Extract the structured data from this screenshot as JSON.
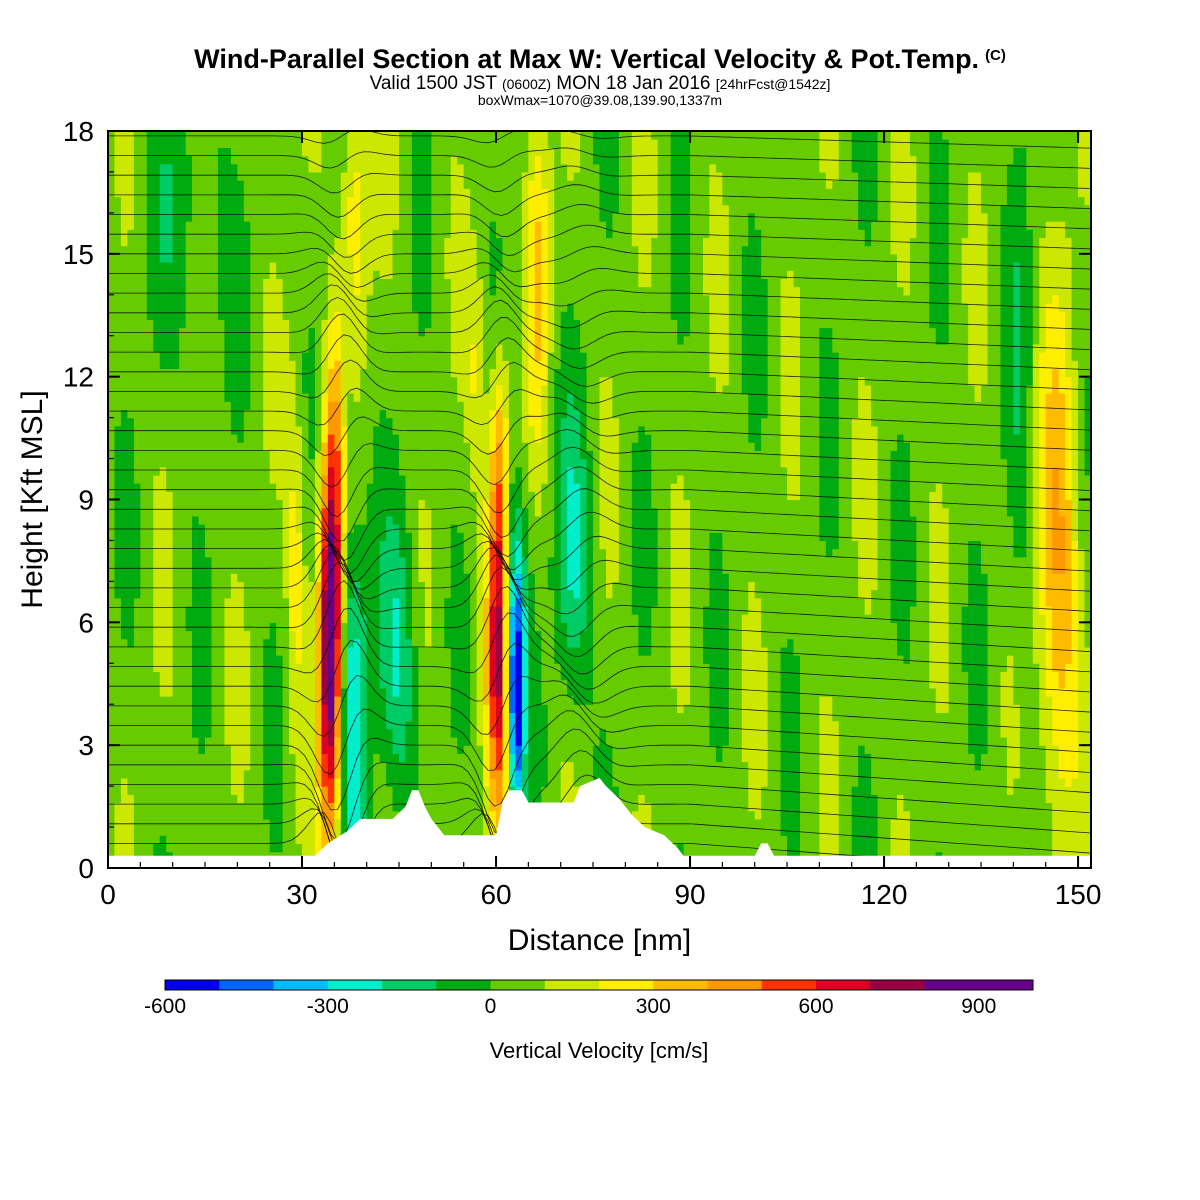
{
  "header": {
    "title": "Wind-Parallel Section at Max W: Vertical Velocity & Pot.Temp.",
    "copyright": "(C)",
    "valid_prefix": "Valid 1500 JST",
    "valid_utc": "(0600Z)",
    "valid_date": "MON 18 Jan 2016",
    "forecast": "[24hrFcst@1542z]",
    "boxwmax": "boxWmax=1070@39.08,139.90,1337m"
  },
  "chart_data": {
    "type": "heatmap",
    "title": "Wind-Parallel Section at Max W: Vertical Velocity & Pot.Temp.",
    "xlabel": "Distance [nm]",
    "ylabel": "Height [Kft MSL]",
    "xlim": [
      0,
      152
    ],
    "ylim": [
      0,
      18
    ],
    "x_ticks": [
      "0",
      "30",
      "60",
      "90",
      "120",
      "150"
    ],
    "y_ticks": [
      "0",
      "3",
      "6",
      "9",
      "12",
      "15",
      "18"
    ],
    "x_tick_values": [
      0,
      30,
      60,
      90,
      120,
      150
    ],
    "y_tick_values": [
      0,
      3,
      6,
      9,
      12,
      15,
      18
    ],
    "colorbar": {
      "label": "Vertical Velocity [cm/s]",
      "tick_labels": [
        "-600",
        "-300",
        "0",
        "300",
        "600",
        "900"
      ],
      "tick_values": [
        -600,
        -300,
        0,
        300,
        600,
        900
      ],
      "bounds": [
        -600,
        -500,
        -400,
        -300,
        -200,
        -100,
        0,
        100,
        200,
        300,
        400,
        500,
        600,
        700,
        800,
        900,
        1000
      ],
      "colors": [
        "#0000ee",
        "#0066ff",
        "#00bbff",
        "#00eecc",
        "#00cc66",
        "#00aa11",
        "#66cc00",
        "#cce800",
        "#ffee00",
        "#ffbb00",
        "#ff9900",
        "#ff3300",
        "#dd0022",
        "#990044",
        "#660088",
        "#660088"
      ]
    },
    "background_value": 50,
    "updraft_cores": [
      {
        "x": 34.5,
        "z": 5.5,
        "w": 1000,
        "sx": 1.3,
        "sz": 3.5
      },
      {
        "x": 35.5,
        "z": 11.0,
        "w": 350,
        "sx": 1.0,
        "sz": 2.5
      },
      {
        "x": 38.0,
        "z": 16.0,
        "w": 250,
        "sx": 1.5,
        "sz": 2.5
      },
      {
        "x": 60.5,
        "z": 5.5,
        "w": 700,
        "sx": 1.3,
        "sz": 3.0
      },
      {
        "x": 60.5,
        "z": 10.0,
        "w": 250,
        "sx": 1.0,
        "sz": 2.0
      },
      {
        "x": 66.5,
        "z": 15.0,
        "w": 250,
        "sx": 1.3,
        "sz": 3.0
      },
      {
        "x": 147.0,
        "z": 7.0,
        "w": 350,
        "sx": 2.2,
        "sz": 4.5
      },
      {
        "x": 29.0,
        "z": 7.5,
        "w": 200,
        "sx": 1.0,
        "sz": 3.0
      },
      {
        "x": 57.0,
        "z": 12.0,
        "w": 150,
        "sx": 1.0,
        "sz": 2.0
      }
    ],
    "downdraft_cores": [
      {
        "x": 37.5,
        "z": 4.0,
        "w": -350,
        "sx": 2.0,
        "sz": 3.0
      },
      {
        "x": 36.0,
        "z": 11.0,
        "w": -250,
        "sx": 1.2,
        "sz": 3.0
      },
      {
        "x": 63.0,
        "z": 4.0,
        "w": -650,
        "sx": 1.0,
        "sz": 2.0
      },
      {
        "x": 62.5,
        "z": 7.0,
        "w": -300,
        "sx": 1.5,
        "sz": 2.0
      },
      {
        "x": 72.0,
        "z": 7.5,
        "w": -250,
        "sx": 2.0,
        "sz": 2.5
      },
      {
        "x": 45.0,
        "z": 5.0,
        "w": -250,
        "sx": 2.0,
        "sz": 2.5
      },
      {
        "x": 12.0,
        "z": 16.0,
        "w": -100,
        "sx": 5.0,
        "sz": 2.5
      },
      {
        "x": 141.0,
        "z": 12.0,
        "w": -100,
        "sx": 1.5,
        "sz": 6.0
      }
    ],
    "terrain": [
      [
        0,
        0.3
      ],
      [
        32,
        0.3
      ],
      [
        34,
        0.6
      ],
      [
        37,
        0.9
      ],
      [
        39,
        1.2
      ],
      [
        44,
        1.2
      ],
      [
        46,
        1.5
      ],
      [
        47,
        1.9
      ],
      [
        48,
        1.9
      ],
      [
        49,
        1.5
      ],
      [
        50,
        1.2
      ],
      [
        52,
        0.8
      ],
      [
        58,
        0.8
      ],
      [
        60,
        0.8
      ],
      [
        61,
        1.6
      ],
      [
        62,
        1.9
      ],
      [
        64,
        1.9
      ],
      [
        65,
        1.6
      ],
      [
        72,
        1.6
      ],
      [
        73,
        2.0
      ],
      [
        76,
        2.2
      ],
      [
        77,
        2.0
      ],
      [
        79,
        1.7
      ],
      [
        81,
        1.3
      ],
      [
        83,
        1.0
      ],
      [
        86,
        0.8
      ],
      [
        88,
        0.5
      ],
      [
        89,
        0.3
      ],
      [
        100,
        0.3
      ],
      [
        101,
        0.6
      ],
      [
        102,
        0.6
      ],
      [
        103,
        0.3
      ],
      [
        152,
        0.3
      ]
    ]
  }
}
